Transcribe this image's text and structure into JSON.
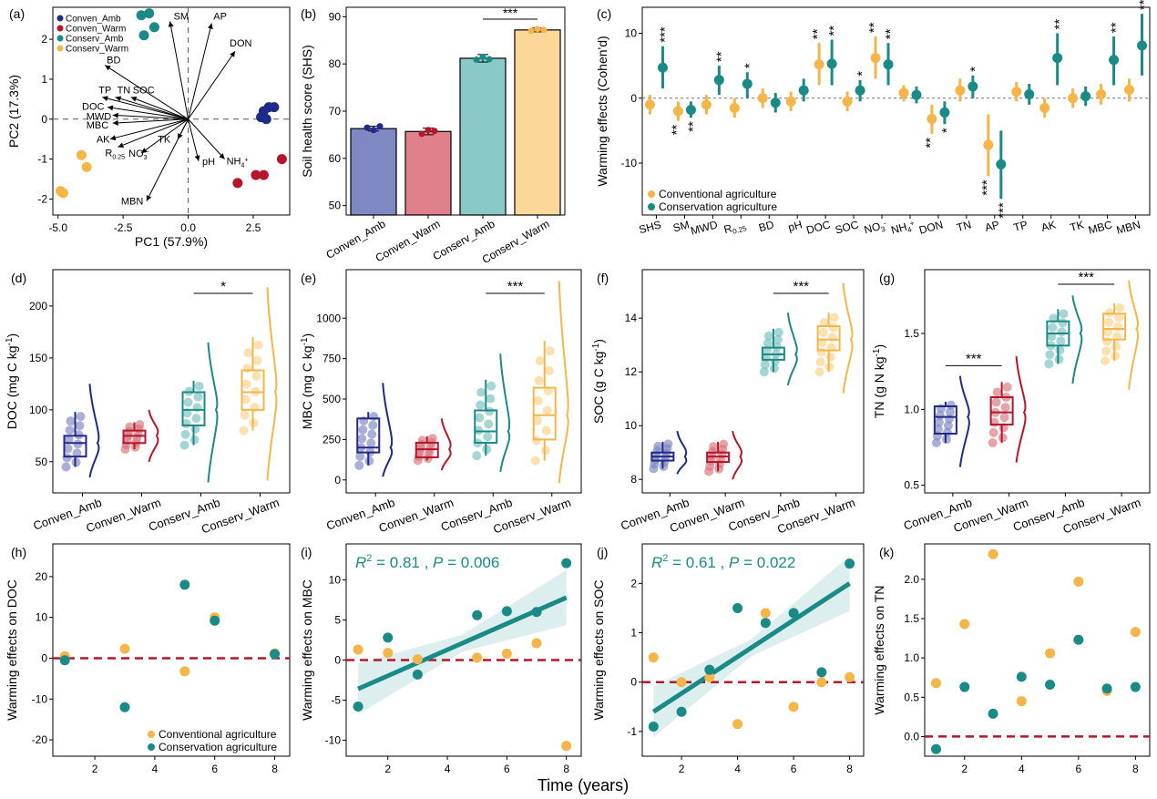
{
  "colors": {
    "conven_amb": "#1f2a8a",
    "conven_warm": "#b5162a",
    "conserv_amb": "#1a8a87",
    "conserv_warm": "#f5b548",
    "conventional": "#f5b548",
    "conservation": "#1a8a87",
    "dashed_red": "#b5162a"
  },
  "shared_xlabel": "Time (years)",
  "chart_data": [
    {
      "panel": "(a)",
      "type": "scatter",
      "xlabel": "PC1 (57.9%)",
      "ylabel": "PC2 (17.3%)",
      "xlim": [
        -5.2,
        3.9
      ],
      "ylim": [
        -2.4,
        2.8
      ],
      "xticks": [
        "-5.0",
        "-2.5",
        "0.0",
        "2.5"
      ],
      "yticks": [
        "-2",
        "-1",
        "0",
        "1",
        "2"
      ],
      "legend": [
        "Conven_Amb",
        "Conven_Warm",
        "Conserv_Amb",
        "Conserv_Warm"
      ],
      "points": {
        "Conven_Amb": [
          [
            2.9,
            0.2
          ],
          [
            3.1,
            0.3
          ],
          [
            3.3,
            0.3
          ],
          [
            2.8,
            0.05
          ],
          [
            3.0,
            0.0
          ]
        ],
        "Conven_Warm": [
          [
            1.9,
            -1.6
          ],
          [
            2.6,
            -1.4
          ],
          [
            2.9,
            -1.4
          ],
          [
            3.6,
            -1.0
          ]
        ],
        "Conserv_Amb": [
          [
            -1.8,
            2.6
          ],
          [
            -1.5,
            2.65
          ],
          [
            -1.3,
            2.3
          ],
          [
            -1.7,
            2.1
          ]
        ],
        "Conserv_Warm": [
          [
            -4.9,
            -1.8
          ],
          [
            -4.8,
            -1.85
          ],
          [
            -4.1,
            -0.9
          ],
          [
            -3.9,
            -1.2
          ]
        ]
      },
      "vectors": [
        {
          "label": "SM",
          "x": -0.7,
          "y": 2.45
        },
        {
          "label": "AP",
          "x": 0.9,
          "y": 2.4
        },
        {
          "label": "DON",
          "x": 1.8,
          "y": 1.7
        },
        {
          "label": "BD",
          "x": -3.2,
          "y": 1.35
        },
        {
          "label": "TP",
          "x": -3.3,
          "y": 0.55
        },
        {
          "label": "TN",
          "x": -2.8,
          "y": 0.55
        },
        {
          "label": "SOC",
          "x": -2.2,
          "y": 0.55
        },
        {
          "label": "DOC",
          "x": -3.1,
          "y": 0.3
        },
        {
          "label": "MWD",
          "x": -2.9,
          "y": 0.1
        },
        {
          "label": "MBC",
          "x": -2.9,
          "y": -0.1
        },
        {
          "label": "AK",
          "x": -3.0,
          "y": -0.5
        },
        {
          "label": "R0.25",
          "x": -2.7,
          "y": -0.7
        },
        {
          "label": "NO3-",
          "x": -1.8,
          "y": -0.85
        },
        {
          "label": "TK",
          "x": -0.4,
          "y": -0.5
        },
        {
          "label": "pH",
          "x": 0.4,
          "y": -1.05
        },
        {
          "label": "NH4+",
          "x": 1.4,
          "y": -1.0
        },
        {
          "label": "MBN",
          "x": -1.6,
          "y": -2.05
        }
      ],
      "labels": {
        "SM": "SM",
        "AP": "AP",
        "DON": "DON",
        "BD": "BD",
        "TP": "TP",
        "TN": "TN",
        "SOC": "SOC",
        "DOC": "DOC",
        "MWD": "MWD",
        "MBC": "MBC",
        "AK": "AK",
        "R": "R",
        "R_sub": "0.25",
        "NO3": "NO",
        "NO3_sub": "3",
        "NO3_sup": "-",
        "TK": "TK",
        "pH": "pH",
        "NH4": "NH",
        "NH4_sub": "4",
        "NH4_sup": "+",
        "MBN": "MBN"
      }
    },
    {
      "panel": "(b)",
      "type": "bar",
      "ylabel": "Soil health score (SHS)",
      "ylim": [
        48,
        92
      ],
      "yticks": [
        "50",
        "60",
        "70",
        "80",
        "90"
      ],
      "categories": [
        "Conven_Amb",
        "Conven_Warm",
        "Conserv_Amb",
        "Conserv_Warm"
      ],
      "values": [
        66.3,
        65.7,
        81.2,
        87.2
      ],
      "errors": [
        0.5,
        0.7,
        0.8,
        0.4
      ],
      "points": [
        [
          66.5,
          66.0,
          66.8
        ],
        [
          65.2,
          66.0,
          65.8
        ],
        [
          80.9,
          81.5,
          81.0
        ],
        [
          87.0,
          87.4,
          87.2
        ]
      ],
      "sig": {
        "label": "***",
        "from": 2,
        "to": 3
      }
    },
    {
      "panel": "(c)",
      "type": "scatter",
      "ylabel": "Warming effects (Cohen'd)",
      "ylim": [
        -18,
        14
      ],
      "yticks": [
        "-10",
        "0",
        "10"
      ],
      "categories": [
        "SHS",
        "SM",
        "MWD",
        "R0.25",
        "BD",
        "pH",
        "DOC",
        "SOC",
        "NO3-",
        "NH4+",
        "DON",
        "TN",
        "AP",
        "TP",
        "AK",
        "TK",
        "MBC",
        "MBN"
      ],
      "tick_text": {
        "SHS": "SHS",
        "SM": "SM",
        "MWD": "MWD",
        "R": "R",
        "R_sub": "0.25",
        "BD": "BD",
        "pH": "pH",
        "DOC": "DOC",
        "SOC": "SOC",
        "NO3": "NO",
        "NO3_sub": "3",
        "NO3_sup": "-",
        "NH4": "NH",
        "NH4_sub": "4",
        "NH4_sup": "+",
        "DON": "DON",
        "TN": "TN",
        "AP": "AP",
        "TP": "TP",
        "AK": "AK",
        "TK": "TK",
        "MBC": "MBC",
        "MBN": "MBN"
      },
      "legend": [
        "Conventional agriculture",
        "Conservation agriculture"
      ],
      "series": [
        {
          "name": "Conventional agriculture",
          "values": [
            -1,
            -2,
            -1,
            -1.5,
            0,
            -0.5,
            5.2,
            -0.5,
            6.2,
            0.8,
            -3.2,
            1.2,
            -7.2,
            1,
            -1.5,
            0,
            0.6,
            1.3
          ],
          "lo": [
            -2.5,
            -3.5,
            -2.5,
            -3,
            -1.5,
            -2,
            2,
            -2,
            3,
            -0.5,
            -5.5,
            -0.5,
            -12,
            -0.5,
            -3,
            -1.5,
            -1,
            -0.5
          ],
          "hi": [
            0.5,
            -0.5,
            0.5,
            0,
            1.5,
            1,
            8.5,
            1,
            9.5,
            2,
            -1,
            3,
            -2.5,
            2.5,
            0,
            1.5,
            2.2,
            3
          ],
          "sig": [
            "",
            "**",
            "",
            "",
            "",
            "",
            "**",
            "",
            "**",
            "",
            "**",
            "",
            "***",
            "",
            "",
            "",
            "",
            ""
          ]
        },
        {
          "name": "Conservation agriculture",
          "values": [
            4.7,
            -1.8,
            2.8,
            2.2,
            -0.7,
            1.2,
            5.3,
            1.2,
            5.2,
            0.5,
            -2.2,
            1.8,
            -10.2,
            0.6,
            6.2,
            0.3,
            5.9,
            8.1
          ],
          "lo": [
            1.5,
            -3,
            0.5,
            0,
            -2.2,
            -0.5,
            2,
            -0.5,
            2,
            -0.8,
            -4,
            0,
            -15.5,
            -1,
            2,
            -1.2,
            2,
            3.5
          ],
          "hi": [
            8,
            -0.5,
            5,
            4,
            0.8,
            3,
            9,
            2.8,
            8.5,
            1.8,
            -0.5,
            3.5,
            -5,
            2.2,
            10,
            1.8,
            9.5,
            13
          ],
          "sig": [
            "***",
            "**",
            "**",
            "*",
            "",
            "",
            "**",
            "*",
            "**",
            "",
            "*",
            "*",
            "***",
            "",
            "**",
            "",
            "**",
            "***"
          ]
        }
      ]
    },
    {
      "panel": "(d)",
      "type": "box",
      "ylabel": "DOC (mg C kg-1)",
      "ylabel_main": "DOC (mg C kg",
      "ylabel_sup": "-1",
      "ylabel_end": ")",
      "ylim": [
        20,
        235
      ],
      "yticks": [
        "50",
        "100",
        "150",
        "200"
      ],
      "categories": [
        "Conven_Amb",
        "Conven_Warm",
        "Conserv_Amb",
        "Conserv_Warm"
      ],
      "boxes": [
        {
          "q1": 55,
          "med": 68,
          "q3": 75,
          "lo": 45,
          "hi": 98,
          "vmin": 35,
          "vmax": 125
        },
        {
          "q1": 68,
          "med": 75,
          "q3": 80,
          "lo": 62,
          "hi": 88,
          "vmin": 50,
          "vmax": 100
        },
        {
          "q1": 85,
          "med": 100,
          "q3": 117,
          "lo": 66,
          "hi": 128,
          "vmin": 30,
          "vmax": 165
        },
        {
          "q1": 100,
          "med": 117,
          "q3": 138,
          "lo": 80,
          "hi": 170,
          "vmin": 32,
          "vmax": 218
        }
      ],
      "sig": {
        "label": "*",
        "from": 2,
        "to": 3
      }
    },
    {
      "panel": "(e)",
      "type": "box",
      "ylabel": "MBC (mg C kg-1)",
      "ylabel_main": "MBC (mg C kg",
      "ylabel_sup": "-1",
      "ylabel_end": ")",
      "ylim": [
        -80,
        1300
      ],
      "yticks": [
        "0",
        "250",
        "500",
        "750",
        "1000"
      ],
      "categories": [
        "Conven_Amb",
        "Conven_Warm",
        "Conserv_Amb",
        "Conserv_Warm"
      ],
      "boxes": [
        {
          "q1": 170,
          "med": 200,
          "q3": 380,
          "lo": 90,
          "hi": 420,
          "vmin": 20,
          "vmax": 600
        },
        {
          "q1": 140,
          "med": 190,
          "q3": 230,
          "lo": 120,
          "hi": 270,
          "vmin": 60,
          "vmax": 380
        },
        {
          "q1": 230,
          "med": 300,
          "q3": 430,
          "lo": 150,
          "hi": 620,
          "vmin": 50,
          "vmax": 780
        },
        {
          "q1": 250,
          "med": 400,
          "q3": 570,
          "lo": 120,
          "hi": 860,
          "vmin": -20,
          "vmax": 1230
        }
      ],
      "sig": {
        "label": "***",
        "from": 2,
        "to": 3
      }
    },
    {
      "panel": "(f)",
      "type": "box",
      "ylabel": "SOC (g C kg-1)",
      "ylabel_main": "SOC (g C kg",
      "ylabel_sup": "-1",
      "ylabel_end": ")",
      "ylim": [
        7.5,
        15.8
      ],
      "yticks": [
        "8",
        "10",
        "12",
        "14"
      ],
      "categories": [
        "Conven_Amb",
        "Conven_Warm",
        "Conserv_Amb",
        "Conserv_Warm"
      ],
      "boxes": [
        {
          "q1": 8.7,
          "med": 8.85,
          "q3": 9.0,
          "lo": 8.4,
          "hi": 9.4,
          "vmin": 8.2,
          "vmax": 9.8
        },
        {
          "q1": 8.65,
          "med": 8.85,
          "q3": 9.0,
          "lo": 8.3,
          "hi": 9.4,
          "vmin": 8.0,
          "vmax": 9.8
        },
        {
          "q1": 12.45,
          "med": 12.65,
          "q3": 12.9,
          "lo": 12.0,
          "hi": 13.6,
          "vmin": 11.5,
          "vmax": 14.2
        },
        {
          "q1": 12.8,
          "med": 13.2,
          "q3": 13.7,
          "lo": 12.0,
          "hi": 14.2,
          "vmin": 11.2,
          "vmax": 15.3
        }
      ],
      "sig": {
        "label": "***",
        "from": 2,
        "to": 3
      }
    },
    {
      "panel": "(g)",
      "type": "box",
      "ylabel": "TN (g N kg-1)",
      "ylabel_main": "TN (g N kg",
      "ylabel_sup": "-1",
      "ylabel_end": ")",
      "ylim": [
        0.45,
        1.92
      ],
      "yticks": [
        "0.5",
        "1.0",
        "1.5"
      ],
      "categories": [
        "Conven_Amb",
        "Conven_Warm",
        "Conserv_Amb",
        "Conserv_Warm"
      ],
      "boxes": [
        {
          "q1": 0.84,
          "med": 0.95,
          "q3": 1.02,
          "lo": 0.78,
          "hi": 1.05,
          "vmin": 0.62,
          "vmax": 1.22
        },
        {
          "q1": 0.9,
          "med": 0.98,
          "q3": 1.08,
          "lo": 0.78,
          "hi": 1.18,
          "vmin": 0.65,
          "vmax": 1.35
        },
        {
          "q1": 1.42,
          "med": 1.5,
          "q3": 1.58,
          "lo": 1.3,
          "hi": 1.66,
          "vmin": 1.17,
          "vmax": 1.75
        },
        {
          "q1": 1.46,
          "med": 1.53,
          "q3": 1.63,
          "lo": 1.32,
          "hi": 1.7,
          "vmin": 1.13,
          "vmax": 1.85
        }
      ],
      "sig1": {
        "label": "***",
        "from": 0,
        "to": 1
      },
      "sig2": {
        "label": "***",
        "from": 2,
        "to": 3
      }
    },
    {
      "panel": "(h)",
      "type": "scatter",
      "ylabel": "Warming effects on DOC",
      "xlim": [
        0.6,
        8.5
      ],
      "ylim": [
        -24,
        28
      ],
      "xticks": [
        "2",
        "4",
        "6",
        "8"
      ],
      "yticks": [
        "-20",
        "-10",
        "0",
        "10",
        "20"
      ],
      "legend": [
        "Conventional agriculture",
        "Conservation agriculture"
      ],
      "series": [
        {
          "name": "Conventional agriculture",
          "x": [
            1,
            3,
            5,
            6,
            8
          ],
          "y": [
            0.5,
            2.3,
            -3.2,
            10,
            1.2
          ]
        },
        {
          "name": "Conservation agriculture",
          "x": [
            1,
            3,
            5,
            6,
            8
          ],
          "y": [
            -0.5,
            -12,
            18,
            9.2,
            1
          ]
        }
      ]
    },
    {
      "panel": "(i)",
      "type": "scatter",
      "ylabel": "Warming effects on MBC",
      "xlim": [
        0.6,
        8.5
      ],
      "ylim": [
        -12,
        14.5
      ],
      "xticks": [
        "2",
        "4",
        "6",
        "8"
      ],
      "yticks": [
        "-10",
        "-5",
        "0",
        "5",
        "10"
      ],
      "annotation": {
        "r2_label": "R",
        "r2_sup": "2",
        "r2_value": " = 0.81 , ",
        "p_label": "P",
        "p_value": " = 0.006"
      },
      "fit": {
        "x": [
          1,
          8
        ],
        "y": [
          -3.6,
          7.8
        ]
      },
      "series": [
        {
          "name": "Conventional agriculture",
          "x": [
            1,
            2,
            3,
            5,
            6,
            7,
            8
          ],
          "y": [
            1.3,
            0.9,
            0.1,
            0.3,
            0.8,
            2.1,
            -10.7
          ]
        },
        {
          "name": "Conservation agriculture",
          "x": [
            1,
            2,
            3,
            5,
            6,
            7,
            8
          ],
          "y": [
            -5.8,
            2.8,
            -1.8,
            5.6,
            6.1,
            6.0,
            12.1
          ]
        }
      ]
    },
    {
      "panel": "(j)",
      "type": "scatter",
      "ylabel": "Warming effects on SOC",
      "xlim": [
        0.6,
        8.5
      ],
      "ylim": [
        -1.5,
        2.8
      ],
      "xticks": [
        "2",
        "4",
        "6",
        "8"
      ],
      "yticks": [
        "-1",
        "0",
        "1",
        "2"
      ],
      "annotation": {
        "r2_label": "R",
        "r2_sup": "2",
        "r2_value": " = 0.61 , ",
        "p_label": "P",
        "p_value": " = 0.022"
      },
      "fit": {
        "x": [
          1,
          8
        ],
        "y": [
          -0.6,
          2.0
        ]
      },
      "series": [
        {
          "name": "Conventional agriculture",
          "x": [
            1,
            2,
            3,
            4,
            5,
            6,
            7,
            8
          ],
          "y": [
            0.5,
            0,
            0.1,
            -0.85,
            1.4,
            -0.5,
            0,
            0.1
          ]
        },
        {
          "name": "Conservation agriculture",
          "x": [
            1,
            2,
            3,
            4,
            5,
            6,
            7,
            8
          ],
          "y": [
            -0.9,
            -0.6,
            0.25,
            1.5,
            1.2,
            1.4,
            0.2,
            2.4
          ]
        }
      ]
    },
    {
      "panel": "(k)",
      "type": "scatter",
      "ylabel": "Warming effects on TN",
      "xlim": [
        0.6,
        8.5
      ],
      "ylim": [
        -0.25,
        2.45
      ],
      "xticks": [
        "2",
        "4",
        "6",
        "8"
      ],
      "yticks": [
        "0.0",
        "0.5",
        "1.0",
        "1.5",
        "2.0"
      ],
      "series": [
        {
          "name": "Conventional agriculture",
          "x": [
            1,
            2,
            3,
            4,
            5,
            6,
            7,
            8
          ],
          "y": [
            0.68,
            1.43,
            2.32,
            0.45,
            1.06,
            1.97,
            0.58,
            1.33
          ]
        },
        {
          "name": "Conservation agriculture",
          "x": [
            1,
            2,
            3,
            4,
            5,
            6,
            7,
            8
          ],
          "y": [
            -0.16,
            0.63,
            0.29,
            0.76,
            0.66,
            1.23,
            0.61,
            0.63
          ]
        }
      ]
    }
  ]
}
